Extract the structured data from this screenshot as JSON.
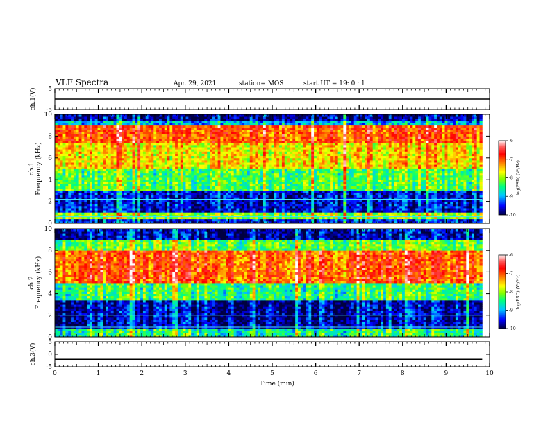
{
  "header": {
    "title": "VLF Spectra",
    "date": "Apr. 29, 2021",
    "station": "station= MOS",
    "start": "start  UT =   19: 0  : 1"
  },
  "colorbar": {
    "label": "log(PSD) (V²/Hz)",
    "ticks": [
      "-6",
      "-7",
      "-8",
      "-9",
      "-10"
    ],
    "colors": [
      "#000040",
      "#0000ff",
      "#00c8ff",
      "#00ff80",
      "#80ff00",
      "#ffff00",
      "#ff8000",
      "#ff0000",
      "#ff6060",
      "#ffffff"
    ]
  },
  "chart_data": [
    {
      "type": "line",
      "panel": "ch.1(V)",
      "ylabel": "ch.1(V)",
      "ylim": [
        -5,
        5
      ],
      "y_ticks": [
        "5",
        "-5"
      ],
      "x": [
        0,
        10
      ],
      "values": [
        0,
        0
      ],
      "xlim": [
        0,
        10
      ]
    },
    {
      "type": "heatmap",
      "panel": "ch.1",
      "ylabel": "ch.1\nFrequency (kHz)",
      "ylim": [
        0,
        10
      ],
      "y_ticks": [
        "0",
        "2",
        "4",
        "6",
        "8",
        "10"
      ],
      "xlim": [
        0,
        10
      ],
      "x_data_max": 9.83,
      "colorbar_range": [
        -10,
        -6
      ],
      "color_scale": "log(PSD) (V²/Hz)",
      "bands": [
        {
          "freq_khz": [
            0.0,
            0.5
          ],
          "level": -9.5
        },
        {
          "freq_khz": [
            0.5,
            1.0
          ],
          "level": -8.0
        },
        {
          "freq_khz": [
            1.0,
            3.0
          ],
          "level": -9.6
        },
        {
          "freq_khz": [
            3.0,
            5.0
          ],
          "level": -8.3
        },
        {
          "freq_khz": [
            5.0,
            7.5
          ],
          "level": -7.6
        },
        {
          "freq_khz": [
            7.5,
            9.0
          ],
          "level": -7.0
        },
        {
          "freq_khz": [
            9.0,
            9.5
          ],
          "level": -9.0
        },
        {
          "freq_khz": [
            9.5,
            10.0
          ],
          "level": -9.8
        }
      ]
    },
    {
      "type": "heatmap",
      "panel": "ch.2",
      "ylabel": "ch.2\nFrequency (kHz)",
      "ylim": [
        0,
        10
      ],
      "y_ticks": [
        "0",
        "2",
        "4",
        "6",
        "8",
        "10"
      ],
      "xlim": [
        0,
        10
      ],
      "x_data_max": 9.83,
      "colorbar_range": [
        -10,
        -6
      ],
      "color_scale": "log(PSD) (V²/Hz)",
      "bands": [
        {
          "freq_khz": [
            0.0,
            0.8
          ],
          "level": -8.5
        },
        {
          "freq_khz": [
            0.8,
            3.5
          ],
          "level": -9.7
        },
        {
          "freq_khz": [
            3.5,
            5.0
          ],
          "level": -8.4
        },
        {
          "freq_khz": [
            5.0,
            8.0
          ],
          "level": -7.0
        },
        {
          "freq_khz": [
            8.0,
            9.0
          ],
          "level": -8.2
        },
        {
          "freq_khz": [
            9.0,
            10.0
          ],
          "level": -9.7
        }
      ]
    },
    {
      "type": "line",
      "panel": "ch.3(V)",
      "ylabel": "ch.3(V)",
      "ylim": [
        -5,
        5
      ],
      "y_ticks": [
        "5",
        "0",
        "-5"
      ],
      "x": [
        0,
        9.83
      ],
      "values": [
        -2.0,
        -2.0
      ],
      "xlim": [
        0,
        10
      ],
      "xlabel": "Time  (min)",
      "x_ticks": [
        "0",
        "1",
        "2",
        "3",
        "4",
        "5",
        "6",
        "7",
        "8",
        "9",
        "10"
      ]
    }
  ]
}
